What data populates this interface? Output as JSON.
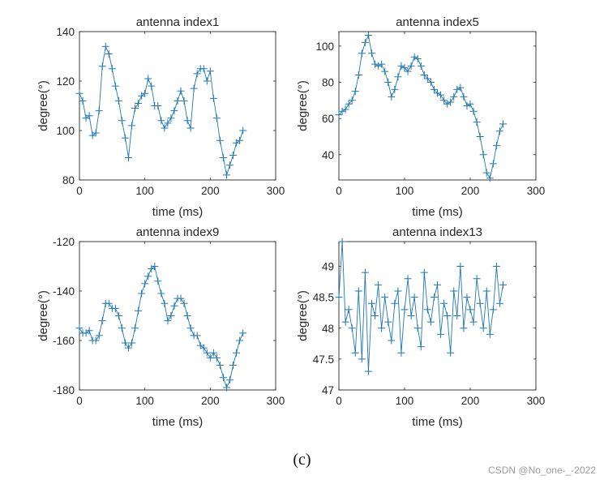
{
  "caption": "(c)",
  "watermark": "CSDN @No_one-_-2022",
  "colors": {
    "series": "#1f77b4",
    "axis": "#262626",
    "background": "#ffffff"
  },
  "chart_data": [
    {
      "type": "line",
      "marker": "+",
      "title": "antenna index1",
      "xlabel": "time (ms)",
      "ylabel": "degree(°)",
      "xlim": [
        0,
        300
      ],
      "ylim": [
        80,
        140
      ],
      "xticks": [
        0,
        100,
        200,
        300
      ],
      "yticks": [
        80,
        100,
        120,
        140
      ],
      "x": [
        0,
        5,
        10,
        15,
        20,
        25,
        30,
        35,
        40,
        45,
        50,
        55,
        60,
        65,
        70,
        75,
        80,
        85,
        90,
        95,
        100,
        105,
        110,
        115,
        120,
        125,
        130,
        135,
        140,
        145,
        150,
        155,
        160,
        165,
        170,
        175,
        180,
        185,
        190,
        195,
        200,
        205,
        210,
        215,
        220,
        225,
        230,
        235,
        240,
        245,
        250
      ],
      "y": [
        115,
        112,
        105,
        106,
        98,
        99,
        108,
        126,
        134,
        131,
        125,
        118,
        112,
        104,
        97,
        89,
        102,
        109,
        111,
        114,
        115,
        121,
        118,
        110,
        110,
        104,
        101,
        103,
        105,
        108,
        112,
        116,
        112,
        104,
        101,
        117,
        123,
        125,
        125,
        120,
        124,
        113,
        105,
        96,
        89,
        82,
        86,
        90,
        95,
        96,
        100
      ]
    },
    {
      "type": "line",
      "marker": "+",
      "title": "antenna index5",
      "xlabel": "time (ms)",
      "ylabel": "degree(°)",
      "xlim": [
        0,
        300
      ],
      "ylim": [
        26,
        108
      ],
      "xticks": [
        0,
        100,
        200,
        300
      ],
      "yticks": [
        40,
        60,
        80,
        100
      ],
      "x": [
        0,
        5,
        10,
        15,
        20,
        25,
        30,
        35,
        40,
        45,
        50,
        55,
        60,
        65,
        70,
        75,
        80,
        85,
        90,
        95,
        100,
        105,
        110,
        115,
        120,
        125,
        130,
        135,
        140,
        145,
        150,
        155,
        160,
        165,
        170,
        175,
        180,
        185,
        190,
        195,
        200,
        205,
        210,
        215,
        220,
        225,
        230,
        235,
        240,
        245,
        250
      ],
      "y": [
        62,
        64,
        65,
        68,
        70,
        75,
        84,
        96,
        102,
        106,
        96,
        90,
        89,
        90,
        86,
        80,
        72,
        76,
        83,
        89,
        88,
        86,
        89,
        94,
        93,
        89,
        84,
        82,
        80,
        76,
        74,
        73,
        70,
        68,
        69,
        72,
        76,
        77,
        72,
        67,
        68,
        64,
        58,
        50,
        40,
        30,
        27,
        35,
        45,
        53,
        57
      ]
    },
    {
      "type": "line",
      "marker": "+",
      "title": "antenna index9",
      "xlabel": "time (ms)",
      "ylabel": "degree(°)",
      "xlim": [
        0,
        300
      ],
      "ylim": [
        -180,
        -120
      ],
      "xticks": [
        0,
        100,
        200,
        300
      ],
      "yticks": [
        -180,
        -160,
        -140,
        -120
      ],
      "x": [
        0,
        5,
        10,
        15,
        20,
        25,
        30,
        35,
        40,
        45,
        50,
        55,
        60,
        65,
        70,
        75,
        80,
        85,
        90,
        95,
        100,
        105,
        110,
        115,
        120,
        125,
        130,
        135,
        140,
        145,
        150,
        155,
        160,
        165,
        170,
        175,
        180,
        185,
        190,
        195,
        200,
        205,
        210,
        215,
        220,
        225,
        230,
        235,
        240,
        245,
        250
      ],
      "y": [
        -155,
        -157,
        -157,
        -156,
        -160,
        -160,
        -158,
        -152,
        -145,
        -145,
        -147,
        -147,
        -150,
        -155,
        -161,
        -163,
        -161,
        -155,
        -148,
        -141,
        -137,
        -134,
        -131,
        -130,
        -136,
        -141,
        -145,
        -152,
        -150,
        -146,
        -143,
        -143,
        -145,
        -150,
        -155,
        -158,
        -158,
        -162,
        -163,
        -165,
        -167,
        -165,
        -167,
        -170,
        -175,
        -179,
        -176,
        -170,
        -165,
        -160,
        -157
      ]
    },
    {
      "type": "line",
      "marker": "+",
      "title": "antenna index13",
      "xlabel": "time (ms)",
      "ylabel": "degree(°)",
      "xlim": [
        0,
        300
      ],
      "ylim": [
        47,
        49.4
      ],
      "xticks": [
        0,
        100,
        200,
        300
      ],
      "yticks": [
        47,
        47.5,
        48,
        48.5,
        49,
        49.5
      ],
      "ytick_labels": [
        "47",
        "47.5",
        "48",
        "48.5",
        "49",
        ""
      ],
      "x": [
        0,
        5,
        10,
        15,
        20,
        25,
        30,
        35,
        40,
        45,
        50,
        55,
        60,
        65,
        70,
        75,
        80,
        85,
        90,
        95,
        100,
        105,
        110,
        115,
        120,
        125,
        130,
        135,
        140,
        145,
        150,
        155,
        160,
        165,
        170,
        175,
        180,
        185,
        190,
        195,
        200,
        205,
        210,
        215,
        220,
        225,
        230,
        235,
        240,
        245,
        250
      ],
      "y": [
        48.5,
        49.4,
        48.1,
        48.3,
        48.0,
        47.6,
        48.6,
        47.5,
        48.9,
        47.3,
        48.4,
        48.2,
        48.7,
        48.0,
        48.5,
        48.1,
        47.8,
        48.4,
        48.6,
        47.6,
        48.3,
        48.8,
        48.2,
        48.5,
        48.0,
        47.7,
        48.9,
        48.3,
        48.1,
        48.5,
        48.7,
        47.9,
        48.4,
        48.2,
        47.6,
        48.6,
        48.2,
        49.0,
        48.0,
        48.5,
        48.3,
        48.1,
        48.8,
        48.4,
        48.0,
        48.6,
        47.9,
        48.3,
        49.0,
        48.4,
        48.7
      ]
    }
  ]
}
